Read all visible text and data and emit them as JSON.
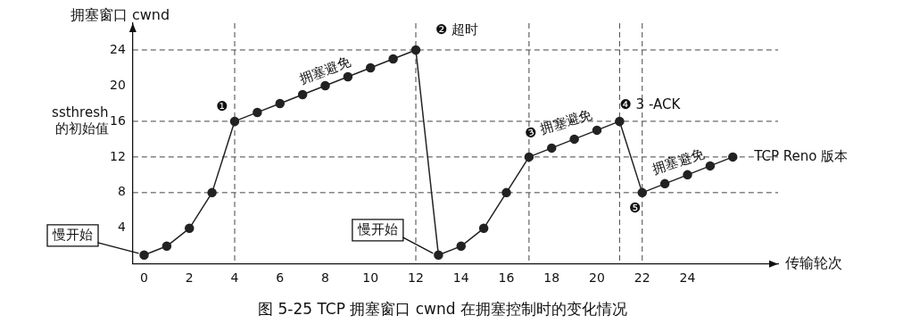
{
  "chart_data": {
    "type": "line",
    "title": "图 5-25 TCP 拥塞窗口 cwnd 在拥塞控制时的变化情况",
    "xlabel": "传输轮次",
    "ylabel": "拥塞窗口 cwnd",
    "x": [
      0,
      1,
      2,
      3,
      4,
      5,
      6,
      7,
      8,
      9,
      10,
      11,
      12,
      13,
      14,
      15,
      16,
      17,
      18,
      19,
      20,
      21,
      22,
      23,
      24,
      25,
      26
    ],
    "series": [
      {
        "color": "#222222",
        "values": [
          1,
          2,
          4,
          8,
          16,
          17,
          18,
          19,
          20,
          21,
          22,
          23,
          24,
          1,
          2,
          4,
          8,
          12,
          13,
          14,
          15,
          16,
          8,
          9,
          10,
          11,
          12
        ]
      }
    ],
    "xlim": [
      -0.5,
      28
    ],
    "xticks": [
      0,
      2,
      4,
      6,
      8,
      10,
      12,
      14,
      16,
      18,
      20,
      22,
      24
    ],
    "ylim": [
      0,
      27
    ],
    "yticks": [
      4,
      8,
      12,
      16,
      20,
      24
    ],
    "grid": false,
    "legend": false,
    "marker": "circle",
    "line_style": "solid",
    "ref_lines": [
      {
        "axis": "y",
        "value": 24,
        "line_style": "dashed"
      },
      {
        "axis": "y",
        "value": 16,
        "line_style": "dashed"
      },
      {
        "axis": "y",
        "value": 12,
        "line_style": "dashed"
      },
      {
        "axis": "y",
        "value": 8,
        "line_style": "dashed"
      },
      {
        "axis": "x",
        "value": 4,
        "line_style": "dashed"
      },
      {
        "axis": "x",
        "value": 12,
        "line_style": "dashed"
      },
      {
        "axis": "x",
        "value": 17,
        "line_style": "dashed"
      },
      {
        "axis": "x",
        "value": 21,
        "line_style": "dashed"
      },
      {
        "axis": "x",
        "value": 22,
        "line_style": "dashed"
      }
    ],
    "annotations": [
      {
        "text": "ssthresh 的初始值",
        "x": 0,
        "y": 16
      },
      {
        "text": "❶",
        "x": 4,
        "y": 16
      },
      {
        "text": "拥塞避免",
        "x": 8,
        "y": 20
      },
      {
        "text": "❷ 超时",
        "x": 12,
        "y": 24
      },
      {
        "text": "慢开始",
        "x": 0,
        "y": 1
      },
      {
        "text": "慢开始",
        "x": 13,
        "y": 1
      },
      {
        "text": "❸ 拥塞避免",
        "x": 17,
        "y": 12
      },
      {
        "text": "❹ 3 -ACK",
        "x": 21,
        "y": 16
      },
      {
        "text": "拥塞避免",
        "x": 24,
        "y": 10
      },
      {
        "text": "❺",
        "x": 22,
        "y": 8
      },
      {
        "text": "TCP Reno 版本",
        "x": 26,
        "y": 12
      }
    ]
  }
}
